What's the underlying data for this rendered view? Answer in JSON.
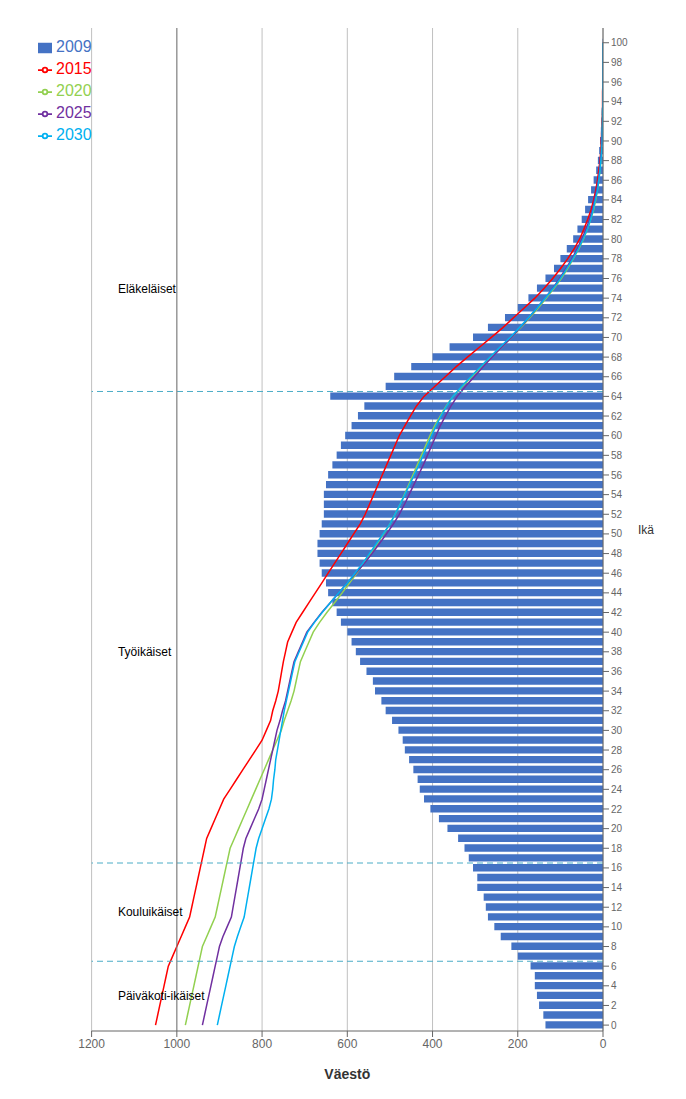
{
  "chart_data": {
    "type": "bar",
    "orientation": "horizontal",
    "xlabel": "Väestö",
    "ylabel": "Ikä",
    "categories": [
      0,
      1,
      2,
      3,
      4,
      5,
      6,
      7,
      8,
      9,
      10,
      11,
      12,
      13,
      14,
      15,
      16,
      17,
      18,
      19,
      20,
      21,
      22,
      23,
      24,
      25,
      26,
      27,
      28,
      29,
      30,
      31,
      32,
      33,
      34,
      35,
      36,
      37,
      38,
      39,
      40,
      41,
      42,
      43,
      44,
      45,
      46,
      47,
      48,
      49,
      50,
      51,
      52,
      53,
      54,
      55,
      56,
      57,
      58,
      59,
      60,
      61,
      62,
      63,
      64,
      65,
      66,
      67,
      68,
      69,
      70,
      71,
      72,
      73,
      74,
      75,
      76,
      77,
      78,
      79,
      80,
      81,
      82,
      83,
      84,
      85,
      86,
      87,
      88,
      89,
      90,
      91,
      92,
      93,
      94,
      95,
      96,
      97,
      98,
      99,
      100
    ],
    "xlim": [
      1200,
      0
    ],
    "xticks": [
      1200,
      1000,
      800,
      600,
      400,
      200,
      0
    ],
    "ylim": [
      -0.6,
      101.5
    ],
    "yticks": [
      0,
      2,
      4,
      6,
      8,
      10,
      12,
      14,
      16,
      18,
      20,
      22,
      24,
      26,
      28,
      30,
      32,
      34,
      36,
      38,
      40,
      42,
      44,
      46,
      48,
      50,
      52,
      54,
      56,
      58,
      60,
      62,
      64,
      66,
      68,
      70,
      72,
      74,
      76,
      78,
      80,
      82,
      84,
      86,
      88,
      90,
      92,
      94,
      96,
      98,
      100
    ],
    "grid": "x",
    "legend": "upper left",
    "series": [
      {
        "name": "2009",
        "type": "bar",
        "color": "#4472C4",
        "values": [
          135,
          140,
          150,
          155,
          160,
          160,
          170,
          200,
          215,
          240,
          255,
          270,
          275,
          280,
          295,
          295,
          305,
          315,
          325,
          340,
          365,
          385,
          405,
          420,
          430,
          435,
          445,
          455,
          465,
          470,
          480,
          495,
          510,
          520,
          535,
          540,
          555,
          570,
          580,
          590,
          600,
          615,
          625,
          635,
          645,
          650,
          660,
          665,
          670,
          670,
          665,
          660,
          655,
          655,
          655,
          650,
          645,
          635,
          625,
          615,
          605,
          590,
          575,
          560,
          640,
          510,
          490,
          450,
          400,
          360,
          305,
          270,
          230,
          200,
          175,
          155,
          135,
          115,
          100,
          85,
          70,
          60,
          50,
          42,
          35,
          28,
          22,
          16,
          12,
          9,
          7,
          5,
          4,
          3,
          2,
          1,
          1,
          1,
          1,
          1,
          1
        ]
      },
      {
        "name": "2015",
        "type": "line",
        "color": "#FF0000",
        "values": [
          1050,
          1045,
          1040,
          1035,
          1030,
          1025,
          1020,
          1010,
          1000,
          990,
          980,
          970,
          965,
          960,
          955,
          950,
          945,
          940,
          935,
          930,
          920,
          910,
          900,
          890,
          875,
          860,
          845,
          830,
          815,
          800,
          790,
          780,
          775,
          768,
          762,
          758,
          754,
          750,
          745,
          740,
          730,
          720,
          705,
          690,
          675,
          660,
          645,
          630,
          615,
          600,
          585,
          570,
          558,
          548,
          538,
          528,
          518,
          508,
          498,
          488,
          478,
          465,
          452,
          438,
          420,
          395,
          370,
          345,
          318,
          290,
          262,
          235,
          210,
          185,
          160,
          138,
          118,
          100,
          83,
          68,
          55,
          45,
          36,
          28,
          22,
          17,
          13,
          10,
          7,
          5,
          4,
          3,
          2,
          1,
          1,
          1,
          0,
          0,
          0,
          0,
          0
        ]
      },
      {
        "name": "2020",
        "type": "line",
        "color": "#92D050",
        "values": [
          980,
          975,
          970,
          965,
          960,
          955,
          950,
          945,
          940,
          930,
          920,
          910,
          905,
          900,
          895,
          890,
          885,
          880,
          875,
          865,
          855,
          845,
          835,
          825,
          815,
          805,
          795,
          785,
          775,
          765,
          755,
          748,
          740,
          732,
          725,
          720,
          715,
          710,
          700,
          690,
          680,
          665,
          648,
          630,
          612,
          595,
          578,
          562,
          545,
          530,
          515,
          500,
          488,
          476,
          466,
          456,
          446,
          436,
          426,
          416,
          406,
          395,
          382,
          368,
          352,
          330,
          308,
          286,
          262,
          238,
          215,
          193,
          172,
          152,
          133,
          115,
          98,
          83,
          70,
          57,
          46,
          37,
          29,
          22,
          17,
          13,
          10,
          7,
          5,
          4,
          3,
          2,
          1,
          1,
          0,
          0,
          0,
          0,
          0,
          0,
          0
        ]
      },
      {
        "name": "2025",
        "type": "line",
        "color": "#7030A0",
        "values": [
          940,
          935,
          930,
          925,
          920,
          915,
          910,
          905,
          900,
          892,
          882,
          872,
          868,
          864,
          860,
          856,
          852,
          848,
          844,
          838,
          828,
          818,
          808,
          800,
          795,
          790,
          785,
          780,
          775,
          770,
          765,
          758,
          752,
          745,
          740,
          735,
          730,
          725,
          715,
          705,
          695,
          678,
          660,
          640,
          620,
          600,
          580,
          560,
          542,
          525,
          508,
          492,
          478,
          466,
          455,
          444,
          433,
          422,
          412,
          402,
          392,
          382,
          370,
          357,
          342,
          323,
          302,
          282,
          260,
          238,
          215,
          194,
          174,
          155,
          136,
          118,
          102,
          87,
          73,
          61,
          50,
          40,
          32,
          25,
          20,
          15,
          11,
          8,
          6,
          4,
          3,
          2,
          1,
          1,
          0,
          0,
          0,
          0,
          0,
          0,
          0
        ]
      },
      {
        "name": "2030",
        "type": "line",
        "color": "#00B0F0",
        "values": [
          905,
          900,
          895,
          890,
          885,
          880,
          875,
          870,
          865,
          858,
          850,
          842,
          838,
          834,
          830,
          826,
          822,
          818,
          814,
          808,
          800,
          792,
          784,
          778,
          775,
          773,
          770,
          768,
          764,
          760,
          756,
          752,
          748,
          743,
          738,
          733,
          728,
          723,
          713,
          703,
          693,
          677,
          659,
          640,
          620,
          600,
          582,
          564,
          548,
          532,
          516,
          500,
          488,
          476,
          465,
          454,
          443,
          432,
          422,
          412,
          402,
          392,
          380,
          367,
          352,
          332,
          310,
          288,
          265,
          242,
          218,
          196,
          175,
          155,
          136,
          117,
          100,
          85,
          71,
          58,
          47,
          37,
          29,
          23,
          18,
          13,
          10,
          7,
          5,
          3,
          2,
          2,
          1,
          1,
          0,
          0,
          0,
          0,
          0,
          0,
          0
        ]
      }
    ],
    "reference_lines": [
      {
        "axis": "y",
        "value": 6.5,
        "color": "#4BACC6",
        "line_style": "dashed"
      },
      {
        "axis": "y",
        "value": 16.5,
        "color": "#4BACC6",
        "line_style": "dashed"
      },
      {
        "axis": "y",
        "value": 64.5,
        "color": "#4BACC6",
        "line_style": "dashed"
      },
      {
        "axis": "x",
        "value": 1000,
        "color": "#808080",
        "line_style": "solid"
      }
    ],
    "annotations": [
      {
        "text": "Eläkeläiset",
        "x": 1150,
        "y": 75
      },
      {
        "text": "Työikäiset",
        "x": 1150,
        "y": 38
      },
      {
        "text": "Kouluikäiset",
        "x": 1150,
        "y": 11.5
      },
      {
        "text": "Päiväkoti-ikäiset",
        "x": 1150,
        "y": 3
      }
    ]
  }
}
